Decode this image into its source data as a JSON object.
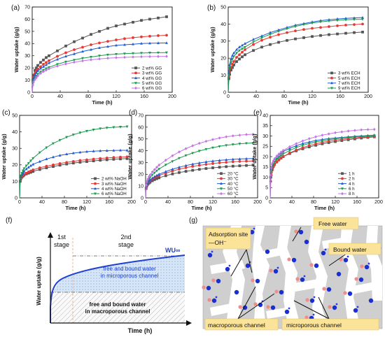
{
  "chart_data": [
    {
      "panel": "(a)",
      "type": "line",
      "xlabel": "Time (h)",
      "ylabel": "Water uptake (g/g)",
      "xlim": [
        0,
        200
      ],
      "ylim": [
        0,
        70
      ],
      "xticks": [
        0,
        40,
        80,
        120,
        160,
        200
      ],
      "yticks": [
        0,
        10,
        20,
        30,
        40,
        50,
        60,
        70
      ],
      "legend_position": "bottom-right",
      "x": [
        0,
        1,
        2,
        4,
        6,
        8,
        12,
        16,
        20,
        24,
        36,
        48,
        60,
        72,
        84,
        96,
        108,
        120,
        132,
        144,
        156,
        168,
        180,
        192
      ],
      "series": [
        {
          "name": "2 wt% GG",
          "color": "#555555",
          "marker": "square",
          "values": [
            0,
            10,
            14,
            18,
            20,
            22,
            24.5,
            26.5,
            28.5,
            30,
            34,
            38,
            41.5,
            44.5,
            47.5,
            50,
            52.5,
            54.5,
            56,
            57.5,
            59,
            60,
            61,
            62
          ]
        },
        {
          "name": "3 wt% GG",
          "color": "#e53935",
          "marker": "circle",
          "values": [
            0,
            9,
            12.5,
            15.5,
            17.5,
            19,
            21,
            23,
            24.5,
            26,
            29.5,
            32.5,
            35,
            37,
            39,
            40.5,
            41.8,
            43,
            44,
            44.8,
            45.5,
            46,
            46.5,
            46.8
          ]
        },
        {
          "name": "4 wt% GG",
          "color": "#1e5bd6",
          "marker": "triangle",
          "values": [
            0,
            8.5,
            11.5,
            14,
            16,
            17.5,
            19.5,
            21,
            22.5,
            24,
            27,
            29.5,
            31.5,
            33.5,
            35,
            36.5,
            37.5,
            38.5,
            39,
            39.5,
            40,
            40.2,
            40.4,
            40.5
          ]
        },
        {
          "name": "5 wt% GG",
          "color": "#1a9a4e",
          "marker": "triangle-down",
          "values": [
            0,
            7,
            9.5,
            12,
            13.5,
            15,
            16.8,
            18.2,
            19.5,
            20.5,
            23,
            25,
            26.5,
            28,
            29,
            30,
            30.8,
            31.3,
            31.7,
            32,
            32.2,
            32.4,
            32.5,
            32.6
          ]
        },
        {
          "name": "6 wt% GG",
          "color": "#c673e6",
          "marker": "diamond",
          "values": [
            0,
            6,
            8.5,
            10.5,
            12,
            13.5,
            15.5,
            17,
            18.2,
            19.3,
            21.5,
            23.3,
            24.7,
            25.8,
            26.7,
            27.4,
            28,
            28.4,
            28.7,
            29,
            29.2,
            29.3,
            29.4,
            29.5
          ]
        }
      ]
    },
    {
      "panel": "(b)",
      "type": "line",
      "xlabel": "Time (h)",
      "ylabel": "Water uptake (g/g)",
      "xlim": [
        0,
        200
      ],
      "ylim": [
        0,
        50
      ],
      "xticks": [
        0,
        40,
        80,
        120,
        160,
        200
      ],
      "yticks": [
        0,
        10,
        20,
        30,
        40,
        50
      ],
      "legend_position": "bottom-right",
      "x": [
        0,
        1,
        2,
        4,
        6,
        8,
        12,
        16,
        20,
        24,
        36,
        48,
        60,
        72,
        84,
        96,
        108,
        120,
        132,
        144,
        156,
        168,
        180,
        192
      ],
      "series": [
        {
          "name": "3 wt% ECH",
          "color": "#555555",
          "marker": "square",
          "values": [
            0,
            8,
            10.5,
            13,
            14.5,
            16,
            18,
            19.5,
            20.8,
            22,
            24.5,
            26.5,
            28,
            29.3,
            30.4,
            31.3,
            32,
            32.7,
            33.3,
            33.8,
            34.2,
            34.6,
            35,
            35.3
          ]
        },
        {
          "name": "5 wt% ECH",
          "color": "#e53935",
          "marker": "circle",
          "values": [
            0,
            9,
            12,
            14.5,
            16.5,
            18,
            20.5,
            22,
            23.5,
            25,
            28,
            30.5,
            32.3,
            33.8,
            35,
            36,
            36.8,
            37.5,
            38,
            38.5,
            39,
            39.4,
            39.7,
            40
          ]
        },
        {
          "name": "7 wt% ECH",
          "color": "#1e5bd6",
          "marker": "triangle",
          "values": [
            0,
            12,
            16,
            19.5,
            21.5,
            23,
            25,
            26.5,
            27.5,
            28.5,
            31,
            33,
            35,
            36.5,
            38,
            39.3,
            40.3,
            41.2,
            42,
            42.5,
            43,
            43.3,
            43.6,
            43.8
          ]
        },
        {
          "name": "9 wt% ECH",
          "color": "#1a9a4e",
          "marker": "triangle-down",
          "values": [
            0,
            10,
            14,
            17.5,
            19.5,
            21,
            23,
            24.5,
            25.5,
            26.5,
            29.5,
            32,
            34,
            35.8,
            37.3,
            38.6,
            39.7,
            40.6,
            41.3,
            41.8,
            42.2,
            42.5,
            42.7,
            42.8
          ]
        }
      ]
    },
    {
      "panel": "(c)",
      "type": "line",
      "xlabel": "Time (h)",
      "ylabel": "Water uptake (g/g)",
      "xlim": [
        0,
        200
      ],
      "ylim": [
        0,
        50
      ],
      "xticks": [
        0,
        40,
        80,
        120,
        160,
        200
      ],
      "yticks": [
        0,
        10,
        20,
        30,
        40,
        50
      ],
      "legend_position": "bottom-right",
      "x": [
        0,
        1,
        2,
        4,
        6,
        8,
        12,
        16,
        20,
        24,
        36,
        48,
        60,
        72,
        84,
        96,
        108,
        120,
        132,
        144,
        156,
        168,
        180,
        192
      ],
      "series": [
        {
          "name": "2 wt% NaOH",
          "color": "#555555",
          "marker": "square",
          "values": [
            0,
            10,
            11.5,
            12.5,
            13.2,
            13.8,
            14.5,
            15,
            15.5,
            16,
            17.2,
            18.2,
            19,
            19.8,
            20.5,
            21.1,
            21.6,
            22,
            22.4,
            22.8,
            23.1,
            23.4,
            23.6,
            23.8
          ]
        },
        {
          "name": "3 wt% NaOH",
          "color": "#e53935",
          "marker": "circle",
          "values": [
            0,
            10.5,
            12,
            13,
            13.7,
            14.3,
            15,
            15.7,
            16.3,
            17,
            18.2,
            19.2,
            20,
            20.8,
            21.5,
            22.1,
            22.7,
            23.1,
            23.5,
            23.9,
            24.2,
            24.5,
            24.7,
            24.9
          ]
        },
        {
          "name": "4 wt% NaOH",
          "color": "#1e5bd6",
          "marker": "triangle",
          "values": [
            0,
            11,
            12.8,
            14,
            15,
            16,
            17.5,
            18.5,
            19.5,
            20.3,
            22,
            23.5,
            24.7,
            25.7,
            26.5,
            27.1,
            27.6,
            28,
            28.3,
            28.5,
            28.6,
            28.7,
            28.8,
            28.8
          ]
        },
        {
          "name": "6 wt% NaOH",
          "color": "#1a9a4e",
          "marker": "triangle-down",
          "values": [
            0,
            11.5,
            13.5,
            15,
            16.5,
            17.8,
            19.5,
            21,
            22.5,
            24,
            27.5,
            30.5,
            33,
            35,
            36.8,
            38.3,
            39.5,
            40.5,
            41.3,
            42,
            42.5,
            42.8,
            43,
            43.2
          ]
        }
      ]
    },
    {
      "panel": "(d)",
      "type": "line",
      "xlabel": "Time (h)",
      "ylabel": "Water uptake (g/g)",
      "xlim": [
        0,
        200
      ],
      "ylim": [
        0,
        70
      ],
      "xticks": [
        0,
        40,
        80,
        120,
        160,
        200
      ],
      "yticks": [
        0,
        10,
        20,
        30,
        40,
        50,
        60,
        70
      ],
      "legend_position": "bottom-right",
      "x": [
        0,
        1,
        2,
        4,
        6,
        8,
        12,
        16,
        20,
        24,
        36,
        48,
        60,
        72,
        84,
        96,
        108,
        120,
        132,
        144,
        156,
        168,
        180,
        192
      ],
      "series": [
        {
          "name": "20 °C",
          "color": "#555555",
          "marker": "square",
          "values": [
            0,
            8,
            10,
            11.5,
            12.5,
            13.3,
            14.5,
            15.5,
            16.3,
            17,
            18.8,
            20.3,
            21.5,
            22.5,
            23.4,
            24.2,
            24.9,
            25.5,
            26,
            26.5,
            26.9,
            27.2,
            27.5,
            27.8
          ]
        },
        {
          "name": "30 °C",
          "color": "#e53935",
          "marker": "circle",
          "values": [
            0,
            9,
            11,
            12.5,
            13.5,
            14.4,
            15.8,
            17,
            18,
            19,
            21,
            22.8,
            24.3,
            25.6,
            26.7,
            27.6,
            28.4,
            29.1,
            29.7,
            30.2,
            30.6,
            30.9,
            31.1,
            31.3
          ]
        },
        {
          "name": "40 °C",
          "color": "#1e5bd6",
          "marker": "triangle",
          "values": [
            0,
            9.5,
            11.5,
            13,
            14.2,
            15.2,
            16.7,
            18,
            19,
            20,
            22.3,
            24.3,
            26,
            27.4,
            28.6,
            29.6,
            30.5,
            31.2,
            31.8,
            32.3,
            32.7,
            33,
            33.2,
            33.4
          ]
        },
        {
          "name": "50 °C",
          "color": "#1a9a4e",
          "marker": "triangle-down",
          "values": [
            0,
            10,
            12.5,
            14.5,
            16,
            17.3,
            19.5,
            21.3,
            23,
            24.5,
            28,
            31,
            33.7,
            36,
            38,
            39.8,
            41.3,
            42.6,
            43.7,
            44.6,
            45.3,
            45.9,
            46.3,
            46.6
          ]
        },
        {
          "name": "60 °C",
          "color": "#c673e6",
          "marker": "diamond",
          "values": [
            0,
            11,
            13.5,
            16,
            18,
            19.5,
            22,
            24,
            26,
            27.8,
            32,
            35.8,
            39,
            41.8,
            44.2,
            46.3,
            48,
            49.5,
            50.8,
            51.8,
            52.6,
            53.2,
            53.7,
            54
          ]
        }
      ]
    },
    {
      "panel": "(e)",
      "type": "line",
      "xlabel": "Time (h)",
      "ylabel": "Water uptake (g/g)",
      "xlim": [
        0,
        200
      ],
      "ylim": [
        0,
        40
      ],
      "xticks": [
        0,
        40,
        80,
        120,
        160,
        200
      ],
      "yticks": [
        0,
        5,
        10,
        15,
        20,
        25,
        30,
        35,
        40
      ],
      "legend_position": "bottom-right",
      "x": [
        0,
        1,
        2,
        4,
        6,
        8,
        12,
        16,
        20,
        24,
        36,
        48,
        60,
        72,
        84,
        96,
        108,
        120,
        132,
        144,
        156,
        168,
        180,
        192
      ],
      "series": [
        {
          "name": "1 h",
          "color": "#555555",
          "marker": "square",
          "values": [
            0,
            10,
            12.5,
            14.5,
            15.5,
            16.3,
            17.5,
            18.5,
            19.3,
            20,
            21.5,
            22.8,
            23.8,
            24.7,
            25.5,
            26.2,
            26.8,
            27.3,
            27.8,
            28.2,
            28.6,
            29,
            29.3,
            29.6
          ]
        },
        {
          "name": "2 h",
          "color": "#e53935",
          "marker": "circle",
          "values": [
            0,
            8,
            11,
            13.5,
            15,
            16,
            17.3,
            18.3,
            19.2,
            20,
            21.8,
            23.2,
            24.4,
            25.4,
            26.2,
            26.9,
            27.5,
            28,
            28.4,
            28.8,
            29.1,
            29.4,
            29.6,
            29.8
          ]
        },
        {
          "name": "4 h",
          "color": "#1e5bd6",
          "marker": "triangle",
          "values": [
            0,
            10.5,
            14,
            16.5,
            17.8,
            18.8,
            20,
            21,
            21.8,
            22.5,
            24,
            25.3,
            26.3,
            27.1,
            27.8,
            28.3,
            28.7,
            29,
            29.3,
            29.6,
            29.8,
            30,
            30.2,
            30.4
          ]
        },
        {
          "name": "6 h",
          "color": "#1a9a4e",
          "marker": "triangle-down",
          "values": [
            0,
            9.5,
            12.5,
            15,
            16.5,
            17.5,
            18.8,
            19.8,
            20.6,
            21.3,
            23,
            24.4,
            25.5,
            26.4,
            27.1,
            27.7,
            28.2,
            28.6,
            29,
            29.3,
            29.6,
            29.8,
            30,
            30.2
          ]
        },
        {
          "name": "8 h",
          "color": "#c673e6",
          "marker": "diamond",
          "values": [
            0,
            11,
            14.5,
            16.8,
            18,
            19,
            20.3,
            21.3,
            22.2,
            23,
            24.8,
            26.3,
            27.6,
            28.7,
            29.6,
            30.4,
            31,
            31.6,
            32,
            32.4,
            32.7,
            33,
            33.1,
            33.2
          ]
        }
      ]
    }
  ],
  "panel_f": {
    "label": "(f)",
    "ylabel": "Water uptake (g/g)",
    "xlabel": "Time (h)",
    "stage1": "1st",
    "stage1b": "stage",
    "stage2": "2nd",
    "stage2b": "stage",
    "wu": "WU∞",
    "micro1": "free and bound water",
    "micro2": "in microporous channel",
    "macro1": "free and bound water",
    "macro2": "in macroporous channel",
    "curve_color": "#1e3fd0"
  },
  "panel_g": {
    "label": "(g)",
    "adsorption1": "Adsorption site",
    "adsorption2": "—OH⁻",
    "free_water": "Free water",
    "bound_water": "Bound water",
    "macro_channel": "macroporous channel",
    "micro_channel": "microporous channel",
    "label_bg": "#fbe39a"
  }
}
